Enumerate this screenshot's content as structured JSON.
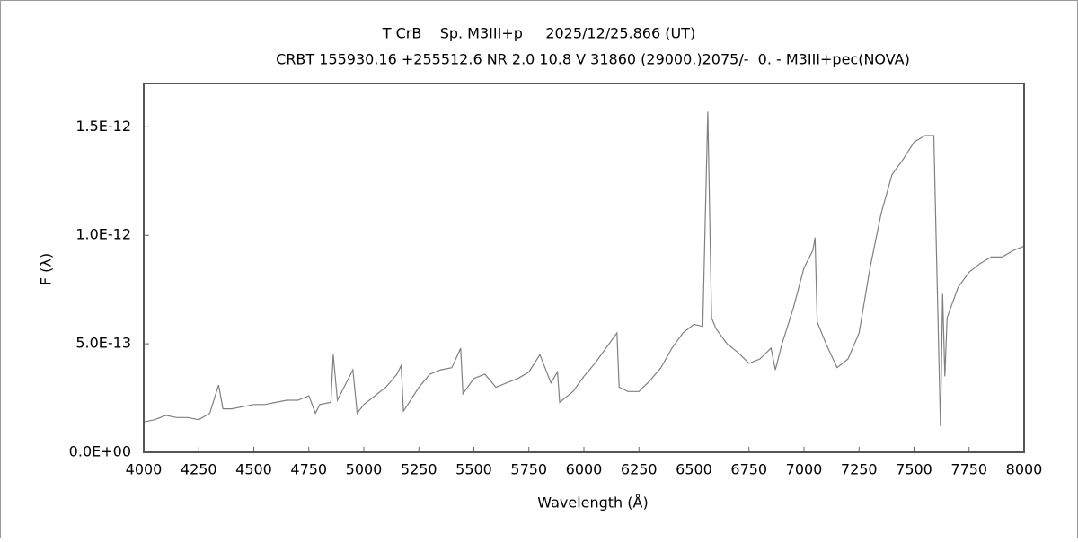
{
  "chart_data": {
    "type": "line",
    "title": "T CrB    Sp. M3III+p     2025/12/25.866 (UT)",
    "subtitle": "CRBT 155930.16 +255512.6 NR 2.0 10.8 V 31860 (29000.)2075/-  0. - M3III+pec(NOVA)",
    "xlabel": "Wavelength (Å)",
    "ylabel": "F (λ)",
    "color": "#808080",
    "x": [
      4000,
      4050,
      4100,
      4150,
      4200,
      4250,
      4300,
      4340,
      4360,
      4400,
      4450,
      4500,
      4550,
      4600,
      4650,
      4700,
      4750,
      4780,
      4800,
      4850,
      4861,
      4880,
      4950,
      4970,
      5000,
      5050,
      5100,
      5150,
      5170,
      5180,
      5200,
      5250,
      5300,
      5350,
      5400,
      5440,
      5450,
      5500,
      5550,
      5600,
      5650,
      5700,
      5750,
      5800,
      5850,
      5880,
      5890,
      5950,
      6000,
      6050,
      6100,
      6150,
      6160,
      6200,
      6250,
      6300,
      6350,
      6400,
      6450,
      6500,
      6540,
      6563,
      6580,
      6600,
      6650,
      6700,
      6750,
      6800,
      6850,
      6870,
      6900,
      6950,
      7000,
      7040,
      7050,
      7060,
      7100,
      7150,
      7200,
      7250,
      7300,
      7350,
      7400,
      7450,
      7500,
      7550,
      7590,
      7600,
      7620,
      7630,
      7640,
      7650,
      7700,
      7750,
      7800,
      7850,
      7900,
      7950,
      8000
    ],
    "values": [
      1.4e-13,
      1.5e-13,
      1.7e-13,
      1.6e-13,
      1.6e-13,
      1.5e-13,
      1.8e-13,
      3.1e-13,
      2e-13,
      2e-13,
      2.1e-13,
      2.2e-13,
      2.2e-13,
      2.3e-13,
      2.4e-13,
      2.4e-13,
      2.6e-13,
      1.8e-13,
      2.2e-13,
      2.3e-13,
      4.5e-13,
      2.4e-13,
      3.8e-13,
      1.8e-13,
      2.2e-13,
      2.6e-13,
      3e-13,
      3.6e-13,
      4e-13,
      1.9e-13,
      2.2e-13,
      3e-13,
      3.6e-13,
      3.8e-13,
      3.9e-13,
      4.8e-13,
      2.7e-13,
      3.4e-13,
      3.6e-13,
      3e-13,
      3.2e-13,
      3.4e-13,
      3.7e-13,
      4.5e-13,
      3.2e-13,
      3.7e-13,
      2.3e-13,
      2.8e-13,
      3.5e-13,
      4.1e-13,
      4.8e-13,
      5.5e-13,
      3e-13,
      2.8e-13,
      2.8e-13,
      3.3e-13,
      3.9e-13,
      4.8e-13,
      5.5e-13,
      5.9e-13,
      5.8e-13,
      1.57e-12,
      6.2e-13,
      5.7e-13,
      5e-13,
      4.6e-13,
      4.1e-13,
      4.3e-13,
      4.8e-13,
      3.8e-13,
      5e-13,
      6.6e-13,
      8.5e-13,
      9.3e-13,
      9.9e-13,
      6e-13,
      5e-13,
      3.9e-13,
      4.3e-13,
      5.5e-13,
      8.5e-13,
      1.1e-12,
      1.28e-12,
      1.35e-12,
      1.43e-12,
      1.46e-12,
      1.46e-12,
      1e-12,
      1.2e-13,
      7.3e-13,
      3.5e-13,
      6.2e-13,
      7.6e-13,
      8.3e-13,
      8.7e-13,
      9e-13,
      9e-13,
      9.3e-13,
      9.5e-13
    ],
    "xlim": [
      4000,
      8000
    ],
    "xticks": [
      4000,
      4250,
      4500,
      4750,
      5000,
      5250,
      5500,
      5750,
      6000,
      6250,
      6500,
      6750,
      7000,
      7250,
      7500,
      7750,
      8000
    ],
    "ylim": [
      0,
      1.7e-12
    ],
    "yticks": [
      {
        "value": 0,
        "label": "0.0E+00"
      },
      {
        "value": 5e-13,
        "label": "5.0E-13"
      },
      {
        "value": 1e-12,
        "label": "1.0E-12"
      },
      {
        "value": 1.5e-12,
        "label": "1.5E-12"
      }
    ],
    "grid": false
  }
}
